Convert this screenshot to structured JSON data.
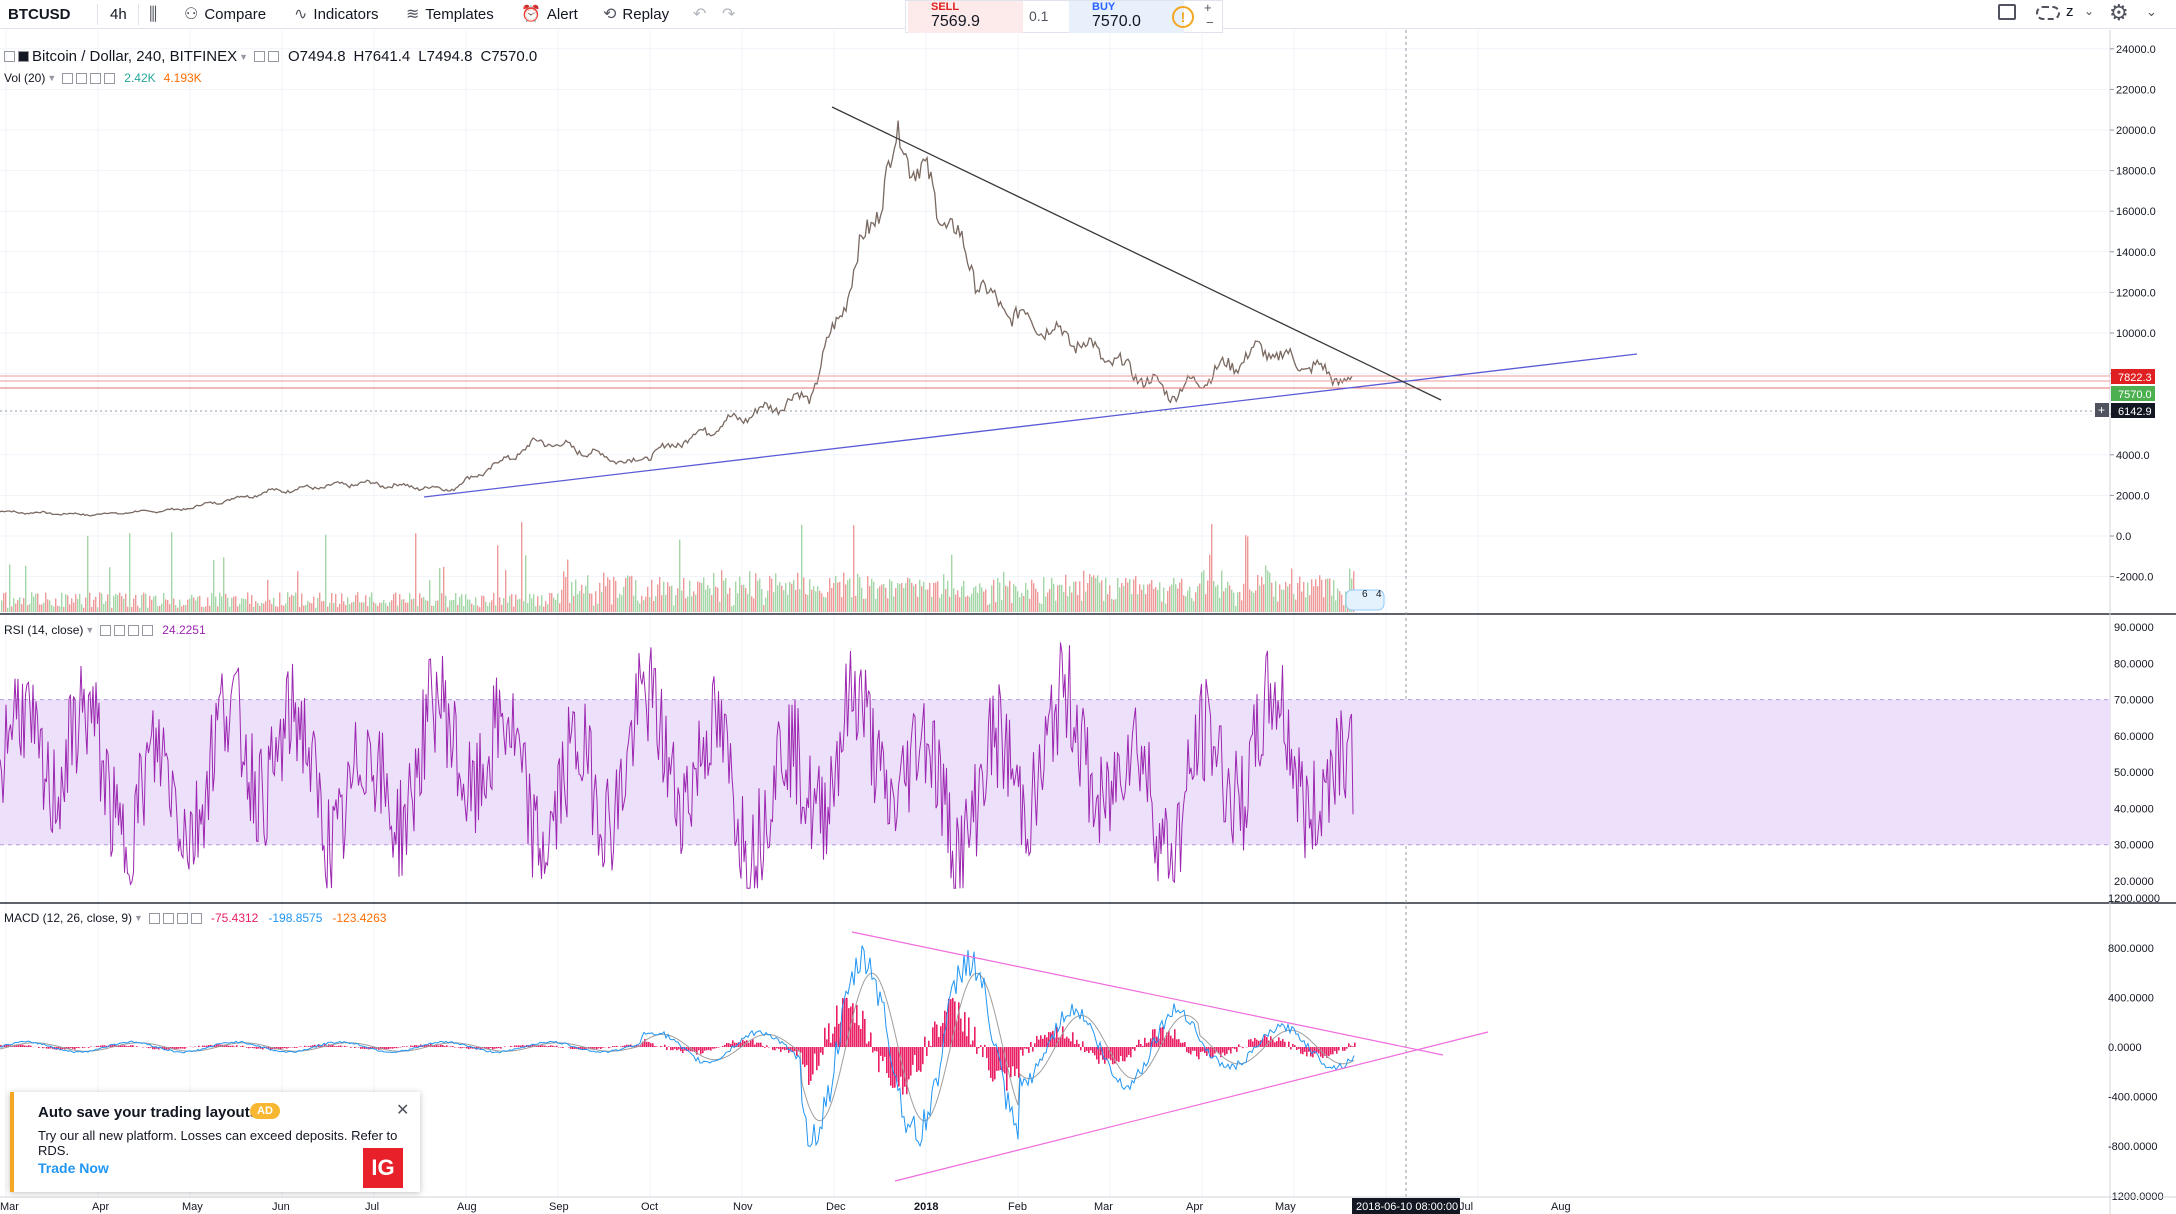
{
  "toolbar": {
    "symbol": "BTCUSD",
    "interval": "4h",
    "compare_label": "Compare",
    "indicators_label": "Indicators",
    "templates_label": "Templates",
    "alert_label": "Alert",
    "replay_label": "Replay",
    "z_label": "z"
  },
  "trade": {
    "sell_label": "SELL",
    "sell_price": "7569.9",
    "spread": "0.1",
    "buy_label": "BUY",
    "buy_price": "7570.0"
  },
  "legend": {
    "title": "Bitcoin / Dollar, 240, BITFINEX",
    "open": "O7494.8",
    "high": "H7641.4",
    "low": "L7494.8",
    "close": "C7570.0",
    "vol_title": "Vol (20)",
    "vol_value_1": "2.42K",
    "vol_value_2": "4.193K",
    "rsi_title": "RSI (14, close)",
    "rsi_value": "24.2251",
    "macd_title": "MACD (12, 26, close, 9)",
    "macd_value_1": "-75.4312",
    "macd_value_2": "-198.8575",
    "macd_value_3": "-123.4263"
  },
  "colors": {
    "candle_up": "#26a69a",
    "candle_down": "#ef5350",
    "price_line": "#7a6a62",
    "trend_blue": "#5b5bd6",
    "trend_dark": "#3a3a3a",
    "rsi_line": "#9c27b0",
    "rsi_band": "#ede0fb",
    "macd_line": "#2196f3",
    "signal_line": "#9e9e9e",
    "histogram": "#e91e63",
    "macd_trend": "#f06bdc",
    "label_red": "#e02020",
    "label_green": "#4caf50",
    "label_dark": "#131722"
  },
  "price_axis": {
    "ticks": [
      "24000.0",
      "22000.0",
      "20000.0",
      "18000.0",
      "16000.0",
      "14000.0",
      "12000.0",
      "10000.0",
      "8000.0",
      "6000.0",
      "4000.0",
      "2000.0",
      "0.0",
      "-2000.0"
    ],
    "label_1": "7822.3",
    "label_2": "7570.0",
    "label_3": "6142.9"
  },
  "rsi_axis": {
    "ticks": [
      "90.0000",
      "80.0000",
      "70.0000",
      "60.0000",
      "50.0000",
      "40.0000",
      "30.0000",
      "20.0000"
    ]
  },
  "macd_axis": {
    "ticks": [
      "1200.0000",
      "800.0000",
      "400.0000",
      "0.0000",
      "-400.0000",
      "-800.0000",
      "-1200.0000"
    ]
  },
  "time_axis": {
    "ticks": [
      "Mar",
      "Apr",
      "May",
      "Jun",
      "Jul",
      "Aug",
      "Sep",
      "Oct",
      "Nov",
      "Dec",
      "2018",
      "Feb",
      "Mar",
      "Apr",
      "May",
      "Jul",
      "Aug"
    ],
    "crosshair_label": "2018-06-10 08:00:00"
  },
  "events": {
    "count_1": "6",
    "count_2": "4"
  },
  "chart_data": {
    "type": "line",
    "title": "Bitcoin / Dollar, 240, BITFINEX",
    "xlabel": "",
    "ylabel": "",
    "ylim": [
      -2000,
      24000
    ],
    "x": [
      "Mar",
      "Apr",
      "May",
      "Jun",
      "Jul",
      "Aug",
      "Sep",
      "Oct",
      "Nov",
      "Dec",
      "2018",
      "Feb",
      "Mar",
      "Apr",
      "May",
      "Jun"
    ],
    "series": [
      {
        "values": [
          1200,
          1050,
          1300,
          2200,
          2600,
          2300,
          4700,
          3600,
          5500,
          7000,
          19700,
          11500,
          9500,
          7000,
          9200,
          7570
        ]
      }
    ],
    "grid": true,
    "legend": "top-left"
  },
  "ad": {
    "title": "Auto save your trading layouts",
    "badge": "AD",
    "text": "Try our all new platform. Losses can exceed deposits. Refer to RDS.",
    "link": "Trade Now",
    "logo": "IG"
  }
}
